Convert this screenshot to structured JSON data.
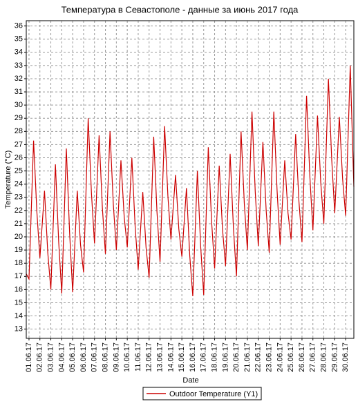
{
  "chart_data": {
    "type": "line",
    "title": "Температура в Севастополе - данные за июнь 2017 года",
    "x_label": "Date",
    "y_label": "Temperature (°C)",
    "x": [
      -0.25,
      0,
      0.42,
      0.72,
      1,
      1.42,
      1.72,
      2,
      2.42,
      2.72,
      3,
      3.42,
      3.72,
      4,
      4.42,
      4.72,
      5,
      5.42,
      5.72,
      6,
      6.42,
      6.72,
      7,
      7.42,
      7.72,
      8,
      8.42,
      8.72,
      9,
      9.42,
      9.72,
      10,
      10.42,
      10.72,
      11,
      11.42,
      11.72,
      12,
      12.42,
      12.72,
      13,
      13.42,
      13.72,
      14,
      14.42,
      14.72,
      15,
      15.42,
      15.72,
      16,
      16.42,
      16.72,
      17,
      17.42,
      17.72,
      18,
      18.42,
      18.72,
      19,
      19.42,
      19.72,
      20,
      20.42,
      20.72,
      21,
      21.42,
      21.72,
      22,
      22.42,
      22.72,
      23,
      23.42,
      23.72,
      24,
      24.42,
      24.72,
      25,
      25.42,
      25.72,
      26,
      26.42,
      26.72,
      27,
      27.42,
      27.72,
      28,
      28.42,
      28.72,
      29,
      29.42,
      29.75
    ],
    "series": [
      {
        "name": "Outdoor Temperature (Y1)",
        "color": "#cc0000",
        "values": [
          17.2,
          16.8,
          27.3,
          21.9,
          18.4,
          23.5,
          18.8,
          16.0,
          25.5,
          19.6,
          15.7,
          26.7,
          20.3,
          15.8,
          23.5,
          19.4,
          17.3,
          29.0,
          23.3,
          19.5,
          27.7,
          22.2,
          18.7,
          28.0,
          22.5,
          19.0,
          25.8,
          21.5,
          19.2,
          26.0,
          20.8,
          17.5,
          23.4,
          19.2,
          16.9,
          27.6,
          21.9,
          18.1,
          28.4,
          23.1,
          19.8,
          24.7,
          20.6,
          18.5,
          23.7,
          18.6,
          15.5,
          25.0,
          19.3,
          15.6,
          26.8,
          21.2,
          17.6,
          25.4,
          20.6,
          17.8,
          26.3,
          20.7,
          17.0,
          28.0,
          22.5,
          19.0,
          29.5,
          23.4,
          19.3,
          27.2,
          22.0,
          18.8,
          29.5,
          23.5,
          19.4,
          25.8,
          21.8,
          19.8,
          27.8,
          22.7,
          19.6,
          30.7,
          24.6,
          20.5,
          29.2,
          24.1,
          21.0,
          32.0,
          25.9,
          21.8,
          29.1,
          24.4,
          21.6,
          33.0,
          23.8
        ]
      }
    ],
    "xlim": [
      -0.25,
      29.75
    ],
    "xticks": [
      {
        "value": 0,
        "label": "01.06.17"
      },
      {
        "value": 1,
        "label": "02.06.17"
      },
      {
        "value": 2,
        "label": "03.06.17"
      },
      {
        "value": 3,
        "label": "04.06.17"
      },
      {
        "value": 4,
        "label": "05.06.17"
      },
      {
        "value": 5,
        "label": "06.06.17"
      },
      {
        "value": 6,
        "label": "07.06.17"
      },
      {
        "value": 7,
        "label": "08.06.17"
      },
      {
        "value": 8,
        "label": "09.06.17"
      },
      {
        "value": 9,
        "label": "10.06.17"
      },
      {
        "value": 10,
        "label": "11.06.17"
      },
      {
        "value": 11,
        "label": "12.06.17"
      },
      {
        "value": 12,
        "label": "13.06.17"
      },
      {
        "value": 13,
        "label": "14.06.17"
      },
      {
        "value": 14,
        "label": "15.06.17"
      },
      {
        "value": 15,
        "label": "16.06.17"
      },
      {
        "value": 16,
        "label": "17.06.17"
      },
      {
        "value": 17,
        "label": "18.06.17"
      },
      {
        "value": 18,
        "label": "19.06.17"
      },
      {
        "value": 19,
        "label": "20.06.17"
      },
      {
        "value": 20,
        "label": "21.06.17"
      },
      {
        "value": 21,
        "label": "22.06.17"
      },
      {
        "value": 22,
        "label": "23.06.17"
      },
      {
        "value": 23,
        "label": "24.06.17"
      },
      {
        "value": 24,
        "label": "25.06.17"
      },
      {
        "value": 25,
        "label": "26.06.17"
      },
      {
        "value": 26,
        "label": "27.06.17"
      },
      {
        "value": 27,
        "label": "28.06.17"
      },
      {
        "value": 28,
        "label": "29.06.17"
      },
      {
        "value": 29,
        "label": "30.06.17"
      }
    ],
    "ylim": [
      12.3,
      36.4
    ],
    "yticks": [
      13,
      14,
      15,
      16,
      17,
      18,
      19,
      20,
      21,
      22,
      23,
      24,
      25,
      26,
      27,
      28,
      29,
      30,
      31,
      32,
      33,
      34,
      35,
      36
    ],
    "grid": true
  }
}
